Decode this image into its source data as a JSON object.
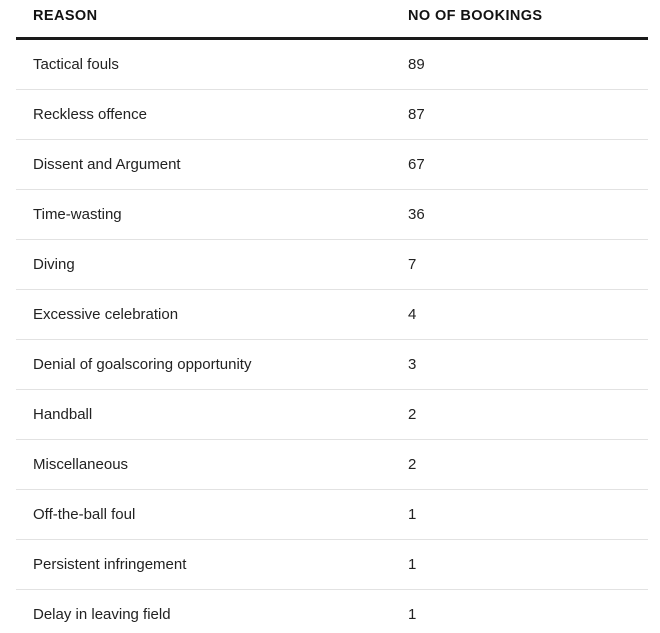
{
  "table": {
    "headers": [
      "REASON",
      "NO OF BOOKINGS"
    ],
    "rows": [
      {
        "reason": "Tactical fouls",
        "bookings": "89"
      },
      {
        "reason": "Reckless offence",
        "bookings": "87"
      },
      {
        "reason": "Dissent and Argument",
        "bookings": "67"
      },
      {
        "reason": "Time-wasting",
        "bookings": "36"
      },
      {
        "reason": "Diving",
        "bookings": "7"
      },
      {
        "reason": "Excessive celebration",
        "bookings": "4"
      },
      {
        "reason": "Denial of goalscoring opportunity",
        "bookings": "3"
      },
      {
        "reason": "Handball",
        "bookings": "2"
      },
      {
        "reason": "Miscellaneous",
        "bookings": "2"
      },
      {
        "reason": "Off-the-ball foul",
        "bookings": "1"
      },
      {
        "reason": "Persistent infringement",
        "bookings": "1"
      },
      {
        "reason": "Delay in leaving field",
        "bookings": "1"
      }
    ]
  },
  "chart_data": {
    "type": "table",
    "title": "",
    "columns": [
      "REASON",
      "NO OF BOOKINGS"
    ],
    "rows": [
      [
        "Tactical fouls",
        89
      ],
      [
        "Reckless offence",
        87
      ],
      [
        "Dissent and Argument",
        67
      ],
      [
        "Time-wasting",
        36
      ],
      [
        "Diving",
        7
      ],
      [
        "Excessive celebration",
        4
      ],
      [
        "Denial of goalscoring opportunity",
        3
      ],
      [
        "Handball",
        2
      ],
      [
        "Miscellaneous",
        2
      ],
      [
        "Off-the-ball foul",
        1
      ],
      [
        "Persistent infringement",
        1
      ],
      [
        "Delay in leaving field",
        1
      ]
    ]
  },
  "colors": {
    "background": "#ffffff",
    "header_rule": "#1a1a1a",
    "row_divider": "#e2e2e2",
    "text": "#222222"
  }
}
